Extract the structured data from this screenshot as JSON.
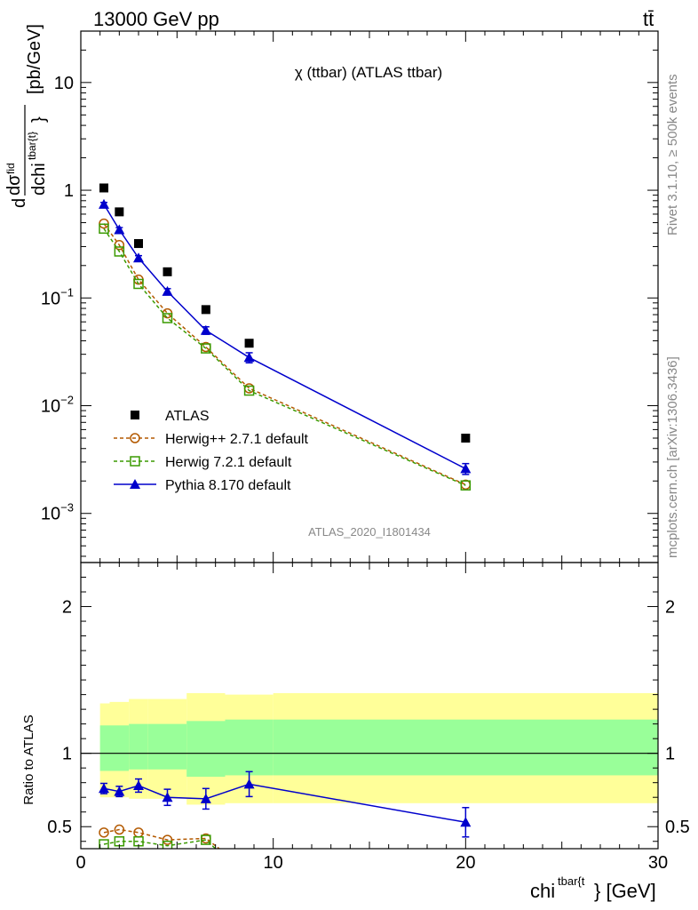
{
  "header": {
    "energy_label": "13000 GeV pp",
    "process_label": "tt̄",
    "plot_title": "χ (ttbar) (ATLAS ttbar)",
    "analysis_id": "ATLAS_2020_I1801434",
    "rivet_label": "Rivet 3.1.10, ≥ 500k events",
    "mcplots_label": "mcplots.cern.ch [arXiv:1306.3436]"
  },
  "chart_data": {
    "type": "scatter",
    "xlabel": "chi^{tbar{t}} [GeV]",
    "ylabel_main": "dσ^{fid}/dchi^{tbar{t}} [pb/GeV]",
    "ylabel_ratio": "Ratio to ATLAS",
    "xlim": [
      0,
      30
    ],
    "ylim_main": [
      0.00035,
      30
    ],
    "ylim_ratio": [
      0.35,
      2.3
    ],
    "y_scale_main": "log",
    "x_ticks": [
      0,
      10,
      20,
      30
    ],
    "y_ticks_ratio": [
      0.5,
      1,
      2
    ],
    "legend_position": "bottom-left",
    "bins": [
      {
        "lo": 1.0,
        "hi": 1.5
      },
      {
        "lo": 1.5,
        "hi": 2.5
      },
      {
        "lo": 2.5,
        "hi": 3.5
      },
      {
        "lo": 3.5,
        "hi": 5.5
      },
      {
        "lo": 5.5,
        "hi": 7.5
      },
      {
        "lo": 7.5,
        "hi": 10.0
      },
      {
        "lo": 10.0,
        "hi": 30.0
      }
    ],
    "series": [
      {
        "name": "ATLAS",
        "marker": "square-filled",
        "color": "#000000",
        "x": [
          1.2,
          2.0,
          3.0,
          4.5,
          6.5,
          8.75,
          20.0
        ],
        "y": [
          1.05,
          0.63,
          0.32,
          0.175,
          0.078,
          0.038,
          0.005
        ]
      },
      {
        "name": "Herwig++ 2.7.1 default",
        "marker": "circle-open",
        "color": "#b35900",
        "x": [
          1.2,
          2.0,
          3.0,
          4.5,
          6.5,
          8.75,
          20.0
        ],
        "y": [
          0.49,
          0.31,
          0.148,
          0.072,
          0.035,
          0.0145,
          0.00185
        ]
      },
      {
        "name": "Herwig 7.2.1 default",
        "marker": "square-open",
        "color": "#3a9a00",
        "x": [
          1.2,
          2.0,
          3.0,
          4.5,
          6.5,
          8.75,
          20.0
        ],
        "y": [
          0.44,
          0.27,
          0.135,
          0.065,
          0.034,
          0.0138,
          0.00182
        ]
      },
      {
        "name": "Pythia 8.170 default",
        "marker": "triangle-filled",
        "color": "#0000cc",
        "x": [
          1.2,
          2.0,
          3.0,
          4.5,
          6.5,
          8.75,
          20.0
        ],
        "y": [
          0.74,
          0.43,
          0.235,
          0.115,
          0.05,
          0.028,
          0.0026
        ],
        "yerr": [
          0.03,
          0.02,
          0.012,
          0.007,
          0.004,
          0.003,
          0.0003
        ]
      }
    ],
    "ratio": {
      "bands": {
        "stat_lo": [
          0.88,
          0.88,
          0.89,
          0.89,
          0.84,
          0.85,
          0.85
        ],
        "stat_hi": [
          1.19,
          1.19,
          1.2,
          1.2,
          1.22,
          1.23,
          1.23
        ],
        "tot_lo": [
          0.7,
          0.7,
          0.69,
          0.69,
          0.65,
          0.66,
          0.66
        ],
        "tot_hi": [
          1.34,
          1.35,
          1.37,
          1.37,
          1.41,
          1.4,
          1.41
        ],
        "stat_color": "#99ff99",
        "tot_color": "#ffff99"
      },
      "series": [
        {
          "name": "Herwig++ 2.7.1 default",
          "x": [
            1.2,
            2.0,
            3.0,
            4.5,
            6.5,
            7.2
          ],
          "y": [
            0.46,
            0.48,
            0.46,
            0.41,
            0.42,
            0.35
          ]
        },
        {
          "name": "Herwig 7.2.1 default",
          "x": [
            1.2,
            2.0,
            3.0,
            4.5,
            6.5,
            7.0
          ],
          "y": [
            0.38,
            0.4,
            0.4,
            0.37,
            0.41,
            0.35
          ]
        },
        {
          "name": "Pythia 8.170 default",
          "x": [
            1.2,
            2.0,
            3.0,
            4.5,
            6.5,
            8.75,
            20.0
          ],
          "y": [
            0.76,
            0.74,
            0.78,
            0.7,
            0.69,
            0.79,
            0.53
          ],
          "yerr": [
            0.035,
            0.035,
            0.045,
            0.055,
            0.07,
            0.085,
            0.1
          ]
        }
      ]
    }
  }
}
